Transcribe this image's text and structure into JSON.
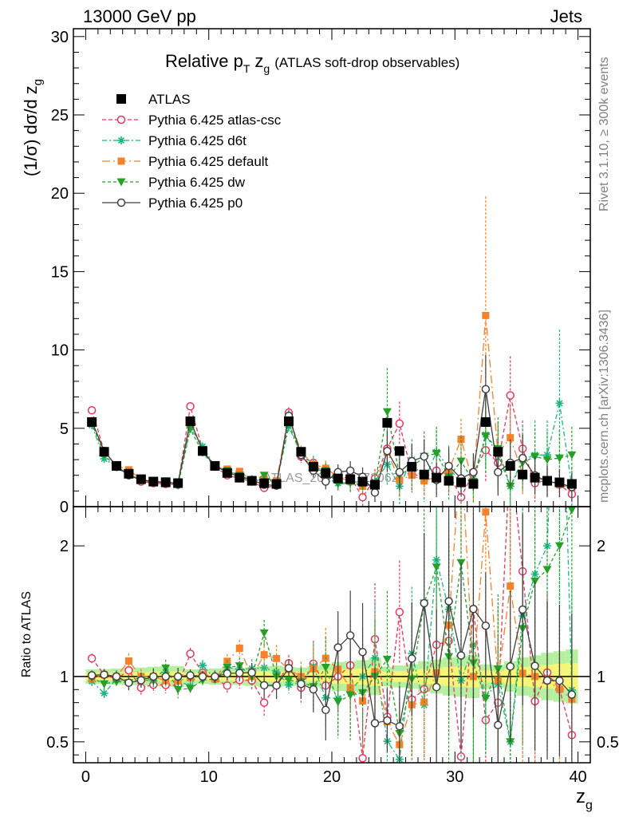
{
  "header": {
    "left": "13000 GeV pp",
    "right": "Jets"
  },
  "title": {
    "main": "Relative p",
    "sub_T": "T",
    "var": "z",
    "sub_g": "g",
    "suffix": "(ATLAS soft-drop observables)"
  },
  "side": {
    "top": "Rivet 3.1.10, ≥ 300k events",
    "bottom": "mcplots.cern.ch [arXiv:1306.3436]"
  },
  "watermark": "ATLAS_2019_I1772062",
  "axes": {
    "ylabel_prefix": "(1/σ) dσ/d z",
    "ylabel_sub": "g",
    "ratio_ylabel": "Ratio to ATLAS",
    "xlabel": "z",
    "xlabel_sub": "g"
  },
  "colors": {
    "atlas": "#000000",
    "atlas_csc": "#e8365e",
    "d6t": "#16b884",
    "default": "#f5822a",
    "dw": "#28a028",
    "p0": "#404040",
    "band_inner": "#f5f576",
    "band_outer": "#b4f0a0"
  },
  "chart_data": {
    "type": "scatter",
    "x": [
      0.5,
      1.5,
      2.5,
      3.5,
      4.5,
      5.5,
      6.5,
      7.5,
      8.5,
      9.5,
      10.5,
      11.5,
      12.5,
      13.5,
      14.5,
      15.5,
      16.5,
      17.5,
      18.5,
      19.5,
      20.5,
      21.5,
      22.5,
      23.5,
      24.5,
      25.5,
      26.5,
      27.5,
      28.5,
      29.5,
      30.5,
      31.5,
      32.5,
      33.5,
      34.5,
      35.5,
      36.5,
      37.5,
      38.5,
      39.5
    ],
    "xlim": [
      -1,
      41
    ],
    "xticks": [
      0,
      10,
      20,
      30,
      40
    ],
    "main": {
      "ylim": [
        0,
        30.5
      ],
      "yticks": [
        0,
        5,
        10,
        15,
        20,
        25,
        30
      ]
    },
    "ratio": {
      "ylim": [
        0.34,
        2.3
      ],
      "yticks": [
        0.5,
        1,
        2
      ]
    },
    "series": [
      {
        "key": "atlas",
        "name": "ATLAS",
        "marker": "square",
        "dash": "",
        "values": [
          5.4,
          3.5,
          2.6,
          2.1,
          1.75,
          1.6,
          1.55,
          1.5,
          5.45,
          3.55,
          2.6,
          2.15,
          1.85,
          1.65,
          1.5,
          1.45,
          5.45,
          3.5,
          2.55,
          2.15,
          1.8,
          1.75,
          1.6,
          1.4,
          5.35,
          3.55,
          2.55,
          2.05,
          1.85,
          1.65,
          1.55,
          1.45,
          5.4,
          3.5,
          2.6,
          2.05,
          1.85,
          1.65,
          1.55,
          1.45
        ],
        "err": [
          0.15,
          0.1,
          0.08,
          0.07,
          0.06,
          0.06,
          0.06,
          0.06,
          0.15,
          0.1,
          0.08,
          0.07,
          0.06,
          0.06,
          0.06,
          0.06,
          0.2,
          0.12,
          0.1,
          0.1,
          0.1,
          0.1,
          0.1,
          0.1,
          0.2,
          0.15,
          0.12,
          0.12,
          0.12,
          0.12,
          0.12,
          0.12,
          0.25,
          0.15,
          0.15,
          0.15,
          0.15,
          0.15,
          0.15,
          0.15
        ]
      },
      {
        "key": "atlas_csc",
        "name": "Pythia 6.425 atlas-csc",
        "marker": "circle-open",
        "dash": "5,3",
        "values": [
          6.15,
          3.55,
          2.55,
          2.2,
          1.6,
          1.5,
          1.45,
          1.4,
          6.4,
          3.65,
          2.55,
          2.0,
          1.8,
          1.6,
          1.2,
          1.35,
          6.0,
          3.2,
          2.8,
          2.0,
          1.8,
          1.9,
          0.6,
          1.8,
          3.7,
          5.3,
          2.1,
          1.85,
          2.3,
          2.1,
          0.6,
          2.2,
          3.6,
          2.8,
          7.1,
          3.7,
          1.5,
          1.7,
          1.4,
          0.8
        ],
        "err": [
          0.2,
          0.15,
          0.12,
          0.12,
          0.1,
          0.1,
          0.1,
          0.1,
          0.25,
          0.15,
          0.12,
          0.12,
          0.12,
          0.12,
          0.15,
          0.15,
          0.35,
          0.4,
          0.45,
          0.5,
          0.5,
          0.6,
          0.6,
          0.6,
          1.2,
          1.4,
          1.2,
          1.1,
          1.2,
          1.2,
          1.0,
          1.2,
          2.0,
          1.8,
          2.5,
          1.8,
          1.2,
          1.0,
          0.9,
          0.9
        ]
      },
      {
        "key": "d6t",
        "name": "Pythia 6.425 d6t",
        "marker": "star",
        "dash": "6,3,2,3",
        "values": [
          5.2,
          3.05,
          2.55,
          2.0,
          1.75,
          1.55,
          1.6,
          1.45,
          5.05,
          3.85,
          2.55,
          2.3,
          1.95,
          1.75,
          1.6,
          1.5,
          5.1,
          3.35,
          2.75,
          1.8,
          1.5,
          1.55,
          1.6,
          1.6,
          2.7,
          1.3,
          3.0,
          1.6,
          3.5,
          2.5,
          1.5,
          1.8,
          4.6,
          3.3,
          1.3,
          3.0,
          3.3,
          3.3,
          6.6,
          1.3
        ],
        "err": [
          0.2,
          0.15,
          0.12,
          0.12,
          0.1,
          0.1,
          0.1,
          0.1,
          0.25,
          0.15,
          0.12,
          0.12,
          0.12,
          0.12,
          0.15,
          0.15,
          0.35,
          0.4,
          0.45,
          0.5,
          0.5,
          0.6,
          0.6,
          0.6,
          1.4,
          1.3,
          1.3,
          1.3,
          1.4,
          1.4,
          1.3,
          1.4,
          2.2,
          2.0,
          2.0,
          2.2,
          2.2,
          2.2,
          4.7,
          1.2
        ]
      },
      {
        "key": "default",
        "name": "Pythia 6.425 default",
        "marker": "square-small",
        "dash": "10,4,2,4",
        "values": [
          5.3,
          3.55,
          2.6,
          2.35,
          1.75,
          1.6,
          1.5,
          1.45,
          5.4,
          3.6,
          2.55,
          2.4,
          2.25,
          1.65,
          1.75,
          1.65,
          5.75,
          3.5,
          2.7,
          2.45,
          1.9,
          1.6,
          1.3,
          1.45,
          3.5,
          1.7,
          2.0,
          1.65,
          1.9,
          2.3,
          4.3,
          1.45,
          12.2,
          3.4,
          4.4,
          2.1,
          1.85,
          1.6,
          1.4,
          1.2
        ],
        "err": [
          0.2,
          0.15,
          0.12,
          0.12,
          0.1,
          0.1,
          0.1,
          0.1,
          0.25,
          0.15,
          0.12,
          0.12,
          0.12,
          0.12,
          0.15,
          0.15,
          0.35,
          0.4,
          0.45,
          0.5,
          0.5,
          0.6,
          0.6,
          0.6,
          1.3,
          1.1,
          1.0,
          1.0,
          1.1,
          1.2,
          1.3,
          1.2,
          7.6,
          2.0,
          2.0,
          1.4,
          1.2,
          1.0,
          0.9,
          0.9
        ]
      },
      {
        "key": "dw",
        "name": "Pythia 6.425 dw",
        "marker": "triangle-down",
        "dash": "4,3",
        "values": [
          5.35,
          3.3,
          2.5,
          2.0,
          1.7,
          1.55,
          1.65,
          1.35,
          4.95,
          3.45,
          2.55,
          2.3,
          2.0,
          1.65,
          2.0,
          1.45,
          5.3,
          3.35,
          2.35,
          2.3,
          1.45,
          1.5,
          1.4,
          1.4,
          6.05,
          2.0,
          2.5,
          3.2,
          3.4,
          1.9,
          2.9,
          1.6,
          4.5,
          3.7,
          1.3,
          2.8,
          3.2,
          3.0,
          3.1,
          3.3
        ],
        "err": [
          0.2,
          0.15,
          0.12,
          0.12,
          0.1,
          0.1,
          0.1,
          0.1,
          0.25,
          0.15,
          0.12,
          0.12,
          0.12,
          0.12,
          0.15,
          0.15,
          0.35,
          0.4,
          0.45,
          0.5,
          0.5,
          0.6,
          0.6,
          0.6,
          2.8,
          1.4,
          1.5,
          1.6,
          1.7,
          1.5,
          1.6,
          1.4,
          2.4,
          2.0,
          1.6,
          1.8,
          1.8,
          1.8,
          1.8,
          1.8
        ]
      },
      {
        "key": "p0",
        "name": "Pythia 6.425 p0",
        "marker": "circle-open",
        "dash": "",
        "values": [
          5.45,
          3.55,
          2.6,
          2.0,
          1.7,
          1.6,
          1.55,
          1.5,
          5.5,
          3.55,
          2.6,
          2.2,
          1.9,
          1.7,
          1.4,
          1.35,
          5.8,
          3.3,
          2.3,
          1.6,
          2.2,
          2.3,
          1.9,
          0.9,
          3.55,
          2.2,
          2.9,
          3.2,
          1.7,
          2.6,
          1.8,
          2.2,
          7.5,
          2.2,
          2.8,
          3.1,
          2.0,
          1.6,
          1.5,
          1.25
        ],
        "err": [
          0.2,
          0.15,
          0.12,
          0.12,
          0.1,
          0.1,
          0.1,
          0.1,
          0.25,
          0.15,
          0.12,
          0.12,
          0.12,
          0.12,
          0.15,
          0.15,
          0.35,
          0.4,
          0.45,
          0.5,
          0.5,
          0.6,
          0.6,
          0.6,
          1.3,
          1.1,
          1.1,
          1.1,
          1.1,
          1.2,
          1.1,
          1.2,
          2.2,
          1.5,
          1.5,
          1.5,
          1.2,
          1.0,
          0.9,
          0.9
        ]
      }
    ]
  }
}
